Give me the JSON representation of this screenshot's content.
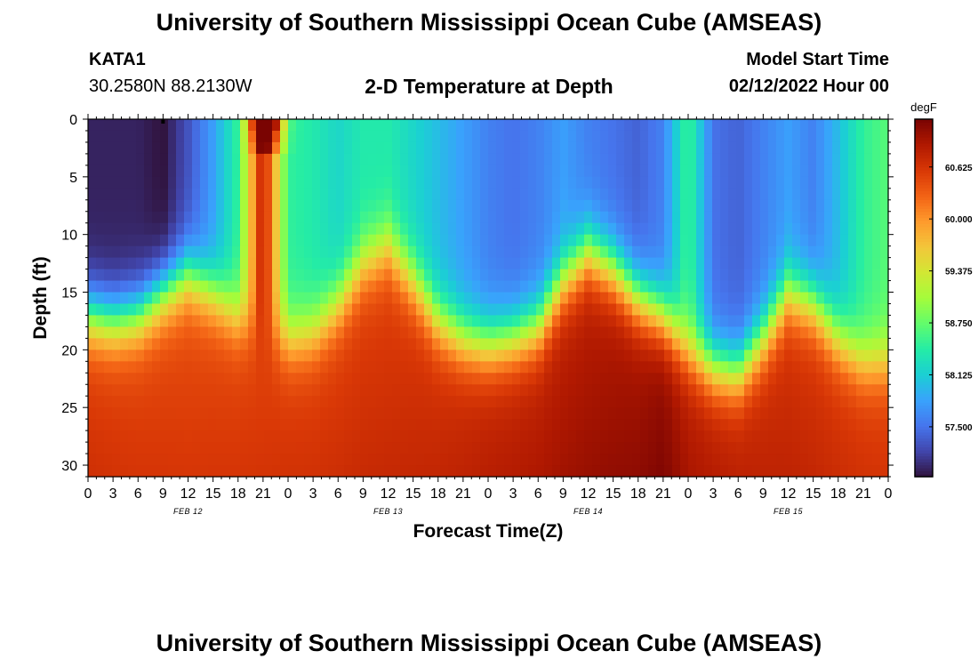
{
  "header": {
    "title": "University of Southern Mississippi Ocean Cube (AMSEAS)",
    "station_id": "KATA1",
    "coordinates": "30.2580N  88.2130W",
    "subtitle": "2-D Temperature at Depth",
    "model_start_label": "Model Start Time",
    "model_start_value": "02/12/2022 Hour 00"
  },
  "footer": {
    "title": "University of Southern Mississippi Ocean Cube (AMSEAS)"
  },
  "chart_data": {
    "type": "heatmap",
    "title": "2-D Temperature at Depth",
    "xlabel": "Forecast Time(Z)",
    "ylabel": "Depth (ft)",
    "x_range_hours": [
      0,
      96
    ],
    "y_range_ft": [
      0,
      31
    ],
    "x_tick_step_hours": 3,
    "x_tick_labels": [
      "0",
      "3",
      "6",
      "9",
      "12",
      "15",
      "18",
      "21",
      "0",
      "3",
      "6",
      "9",
      "12",
      "15",
      "18",
      "21",
      "0",
      "3",
      "6",
      "9",
      "12",
      "15",
      "18",
      "21",
      "0",
      "3",
      "6",
      "9",
      "12",
      "15",
      "18",
      "21",
      "0"
    ],
    "day_labels": [
      {
        "label": "FEB 12",
        "hour": 12
      },
      {
        "label": "FEB 13",
        "hour": 36
      },
      {
        "label": "FEB 14",
        "hour": 60
      },
      {
        "label": "FEB 15",
        "hour": 84
      }
    ],
    "y_ticks": [
      0,
      5,
      10,
      15,
      20,
      25,
      30
    ],
    "colorbar": {
      "unit": "degF",
      "min": 56.9,
      "max": 61.2,
      "tick_values": [
        57.5,
        58.125,
        58.75,
        59.375,
        60.0,
        60.625
      ],
      "tick_labels": [
        "57.500",
        "58.125",
        "58.750",
        "59.375",
        "60.000",
        "60.625"
      ],
      "colormap": [
        "#30123b",
        "#4145ab",
        "#4675ed",
        "#39a2fc",
        "#1bcfd4",
        "#24eca6",
        "#61fc6c",
        "#a4fc3b",
        "#d1e834",
        "#f3c63a",
        "#fe9b2d",
        "#f36315",
        "#d93806",
        "#b11901",
        "#7a0402"
      ]
    },
    "thermocline_depth_ft_by_hour": [
      [
        0,
        17
      ],
      [
        3,
        17.5
      ],
      [
        6,
        17
      ],
      [
        9,
        15
      ],
      [
        12,
        13.5
      ],
      [
        15,
        15
      ],
      [
        18,
        17
      ],
      [
        21,
        18
      ],
      [
        24,
        19
      ],
      [
        27,
        18.5
      ],
      [
        30,
        16
      ],
      [
        33,
        12.5
      ],
      [
        36,
        11
      ],
      [
        39,
        14
      ],
      [
        42,
        17.5
      ],
      [
        45,
        19
      ],
      [
        48,
        19.5
      ],
      [
        51,
        19
      ],
      [
        54,
        18
      ],
      [
        57,
        14
      ],
      [
        60,
        11.5
      ],
      [
        63,
        13
      ],
      [
        66,
        15.5
      ],
      [
        69,
        17
      ],
      [
        72,
        20
      ],
      [
        75,
        21.5
      ],
      [
        78,
        22
      ],
      [
        81,
        19
      ],
      [
        84,
        15
      ],
      [
        87,
        16
      ],
      [
        90,
        19
      ],
      [
        93,
        21
      ],
      [
        96,
        21
      ]
    ],
    "surface_temp_degF": [
      [
        0,
        57.0
      ],
      [
        6,
        57.0
      ],
      [
        9,
        56.9
      ],
      [
        12,
        57.3
      ],
      [
        15,
        57.8
      ],
      [
        18,
        58.5
      ],
      [
        21,
        60.9
      ],
      [
        24,
        58.5
      ],
      [
        27,
        58.4
      ],
      [
        30,
        58.2
      ],
      [
        33,
        58.4
      ],
      [
        36,
        58.4
      ],
      [
        39,
        58.2
      ],
      [
        42,
        58.0
      ],
      [
        45,
        57.8
      ],
      [
        48,
        57.6
      ],
      [
        51,
        57.5
      ],
      [
        54,
        57.6
      ],
      [
        57,
        57.8
      ],
      [
        60,
        57.6
      ],
      [
        63,
        57.5
      ],
      [
        66,
        57.4
      ],
      [
        69,
        57.6
      ],
      [
        72,
        58.6
      ],
      [
        75,
        57.5
      ],
      [
        78,
        57.4
      ],
      [
        81,
        57.6
      ],
      [
        84,
        57.8
      ],
      [
        87,
        57.6
      ],
      [
        90,
        58.0
      ],
      [
        93,
        58.5
      ],
      [
        96,
        58.7
      ]
    ],
    "bottom_temp_degF": [
      [
        0,
        60.5
      ],
      [
        12,
        60.4
      ],
      [
        24,
        60.5
      ],
      [
        36,
        60.5
      ],
      [
        48,
        60.7
      ],
      [
        60,
        60.8
      ],
      [
        66,
        60.9
      ],
      [
        69,
        61.0
      ],
      [
        72,
        60.8
      ],
      [
        84,
        60.6
      ],
      [
        96,
        60.5
      ]
    ]
  }
}
